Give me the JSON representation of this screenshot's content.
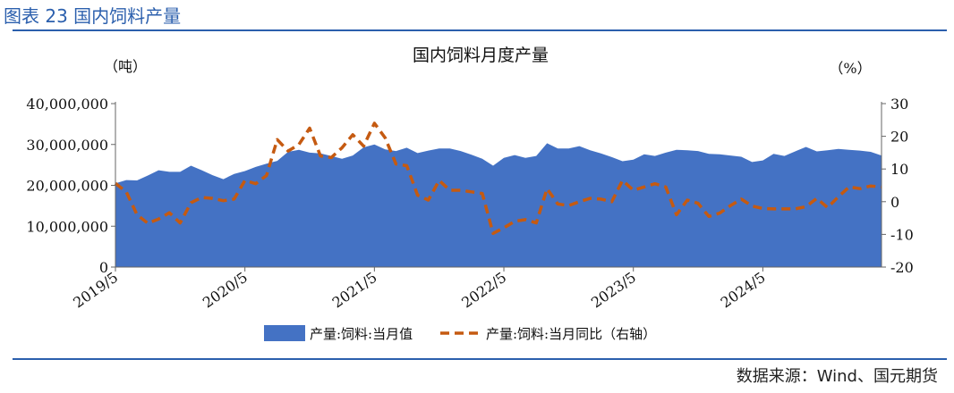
{
  "header": {
    "figure_title": "图表 23 国内饲料产量"
  },
  "footer": {
    "source": "数据来源：Wind、国元期货"
  },
  "colors": {
    "area": "#4472c4",
    "line": "#c55a11",
    "rule": "#2b5fad"
  },
  "chart_data": {
    "type": "area+line",
    "title": "国内饲料月度产量",
    "left_axis": {
      "unit": "（吨）",
      "ticks": [
        "0",
        "10,000,000",
        "20,000,000",
        "30,000,000",
        "40,000,000"
      ],
      "ylim": [
        0,
        40000000
      ]
    },
    "right_axis": {
      "unit": "（%）",
      "ticks": [
        "-20",
        "-10",
        "0",
        "10",
        "20",
        "30"
      ],
      "ylim": [
        -20,
        30
      ]
    },
    "x_tick_labels": [
      "2019/5",
      "2020/5",
      "2021/5",
      "2022/5",
      "2023/5",
      "2024/5"
    ],
    "x_start_month": "2019-05",
    "legend": {
      "position": "bottom"
    },
    "grid": false,
    "series": [
      {
        "name": "产量:饲料:当月值",
        "type": "area",
        "axis": "left",
        "values": [
          20500000,
          21300000,
          21200000,
          22400000,
          23700000,
          23300000,
          23300000,
          24800000,
          23700000,
          22500000,
          21500000,
          22800000,
          23500000,
          24500000,
          25300000,
          26000000,
          28200000,
          28700000,
          28000000,
          27800000,
          27200000,
          26500000,
          27300000,
          29300000,
          30000000,
          28800000,
          28400000,
          29200000,
          27900000,
          28500000,
          29000000,
          29000000,
          28400000,
          27500000,
          26500000,
          24800000,
          26700000,
          27400000,
          26700000,
          27200000,
          30300000,
          29000000,
          29000000,
          29600000,
          28600000,
          27800000,
          26900000,
          25900000,
          26300000,
          27600000,
          27200000,
          28000000,
          28700000,
          28600000,
          28400000,
          27700000,
          27600000,
          27300000,
          27000000,
          25700000,
          26100000,
          27700000,
          27200000,
          28300000,
          29400000,
          28300000,
          28600000,
          28900000,
          28700000,
          28500000,
          28200000,
          27300000
        ]
      },
      {
        "name": "产量:饲料:当月同比（右轴）",
        "type": "line",
        "axis": "right",
        "dash": true,
        "values": [
          5.6,
          3,
          -4,
          -6.6,
          -5.3,
          -3.4,
          -6.5,
          -0.3,
          1.3,
          1,
          0.3,
          0.8,
          6.5,
          5.5,
          8,
          19,
          15.5,
          17.5,
          22.5,
          14,
          13.5,
          16.5,
          20.5,
          17,
          24,
          19.5,
          11.5,
          11,
          2,
          0.5,
          6.5,
          3.5,
          3.5,
          3,
          2.5,
          -9.7,
          -8,
          -6,
          -5.5,
          -6.5,
          4,
          -0.7,
          -1.2,
          0,
          1,
          0.8,
          0,
          6.5,
          3.5,
          4.5,
          5.5,
          4.5,
          -4,
          0.5,
          -0.5,
          -4.5,
          -3.5,
          -1.2,
          0.8,
          -1.3,
          -2.1,
          -2.2,
          -2.2,
          -2.2,
          -1.5,
          1,
          -1.8,
          1.5,
          4.5,
          4,
          4.8,
          4.5
        ]
      }
    ]
  }
}
